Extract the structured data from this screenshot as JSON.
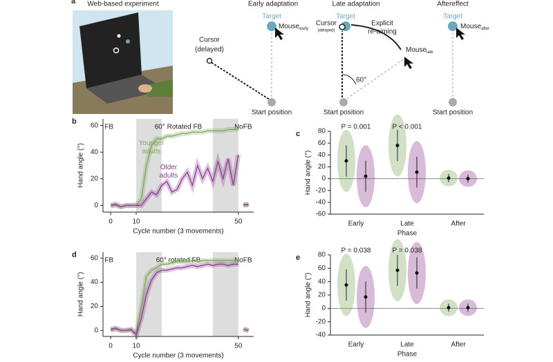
{
  "panel_a": {
    "label": "a",
    "headers": [
      "Web-based experiment",
      "Early adaptation",
      "Late adaptation",
      "Aftereffect"
    ],
    "target": "Target",
    "mouse": "Mouse",
    "sub_early": "early",
    "sub_late": "late",
    "sub_after": "after",
    "cursor_delayed_1": "Cursor",
    "cursor_delayed_2": "(delayed)",
    "cursor": "Cursor",
    "delayed_small": "(delayed)",
    "reaim_1": "Explicit",
    "reaim_2": "re-aiming",
    "angle": "60°",
    "start": "Start position"
  },
  "chart_data": [
    {
      "type": "line",
      "label": "b",
      "xlabel": "Cycle number (3 movements)",
      "ylabel": "Hand angle (°)",
      "xlim": [
        -3,
        56
      ],
      "xticks": [
        0,
        10,
        50
      ],
      "ylim": [
        -5,
        65
      ],
      "yticks": [
        0,
        20,
        40,
        60
      ],
      "shaded": [
        [
          10,
          20
        ],
        [
          40,
          50
        ]
      ],
      "region_labels": [
        "FB",
        "60° Rotated FB",
        "NoFB"
      ],
      "x": [
        0,
        2,
        4,
        6,
        8,
        10,
        12,
        14,
        16,
        18,
        20,
        22,
        24,
        26,
        28,
        30,
        32,
        34,
        36,
        38,
        40,
        42,
        44,
        46,
        48,
        50,
        51,
        52,
        54
      ],
      "series": [
        {
          "name": "Younger adults",
          "color": "#7fa85a",
          "values": [
            0,
            0,
            -1,
            0,
            0,
            0,
            5,
            30,
            45,
            50,
            50,
            52,
            52,
            53,
            54,
            54,
            55,
            55,
            55,
            56,
            56,
            56,
            56,
            57,
            57,
            57,
            null,
            1,
            0
          ]
        },
        {
          "name": "Older adults",
          "color": "#8e3d91",
          "values": [
            0,
            1,
            -1,
            0,
            0,
            0,
            0,
            5,
            10,
            8,
            15,
            18,
            10,
            12,
            20,
            25,
            15,
            30,
            20,
            28,
            18,
            33,
            20,
            35,
            15,
            38,
            null,
            0,
            1
          ]
        }
      ]
    },
    {
      "type": "violin",
      "label": "c",
      "xlabel": "Phase",
      "ylabel": "Hand angle (°)",
      "ylim": [
        -60,
        80
      ],
      "yticks": [
        -60,
        -40,
        -20,
        0,
        20,
        40,
        60,
        80
      ],
      "categories": [
        "Early",
        "Late",
        "After"
      ],
      "annotations": [
        "P = 0.001",
        "P < 0.001"
      ],
      "series": [
        {
          "color": "#7fa85a",
          "values": [
            30,
            56,
            1
          ]
        },
        {
          "color": "#8e3d91",
          "values": [
            4,
            11,
            0
          ]
        }
      ]
    },
    {
      "type": "line",
      "label": "d",
      "xlabel": "Cycle number (3 movements)",
      "ylabel": "Hand angle (°)",
      "xlim": [
        -3,
        56
      ],
      "xticks": [
        0,
        10,
        50
      ],
      "ylim": [
        -5,
        65
      ],
      "yticks": [
        0,
        20,
        40,
        60
      ],
      "shaded": [
        [
          10,
          20
        ],
        [
          40,
          50
        ]
      ],
      "region_labels": [
        "FB",
        "60° rotated FB",
        "NoFB"
      ],
      "x": [
        0,
        2,
        4,
        6,
        8,
        10,
        12,
        14,
        16,
        18,
        20,
        22,
        24,
        26,
        28,
        30,
        32,
        34,
        36,
        38,
        40,
        42,
        44,
        46,
        48,
        50,
        51,
        52,
        54
      ],
      "series": [
        {
          "color": "#7fa85a",
          "values": [
            0,
            1,
            0,
            0,
            0,
            -2,
            20,
            45,
            50,
            52,
            55,
            55,
            56,
            57,
            57,
            57,
            58,
            57,
            58,
            58,
            58,
            58,
            58,
            58,
            58,
            58,
            null,
            1,
            0
          ]
        },
        {
          "color": "#8e3d91",
          "values": [
            1,
            2,
            0,
            0,
            1,
            -4,
            10,
            30,
            42,
            48,
            50,
            50,
            51,
            52,
            52,
            53,
            54,
            53,
            54,
            55,
            54,
            55,
            55,
            54,
            55,
            55,
            null,
            1,
            0
          ]
        }
      ]
    },
    {
      "type": "violin",
      "label": "e",
      "xlabel": "Phase",
      "ylabel": "Hand angle (°)",
      "ylim": [
        -40,
        80
      ],
      "yticks": [
        -40,
        -20,
        0,
        20,
        40,
        60,
        80
      ],
      "categories": [
        "Early",
        "Late",
        "After"
      ],
      "annotations": [
        "P = 0.038",
        "P = 0.038"
      ],
      "series": [
        {
          "color": "#7fa85a",
          "values": [
            35,
            57,
            1
          ]
        },
        {
          "color": "#8e3d91",
          "values": [
            17,
            53,
            1
          ]
        }
      ]
    }
  ]
}
